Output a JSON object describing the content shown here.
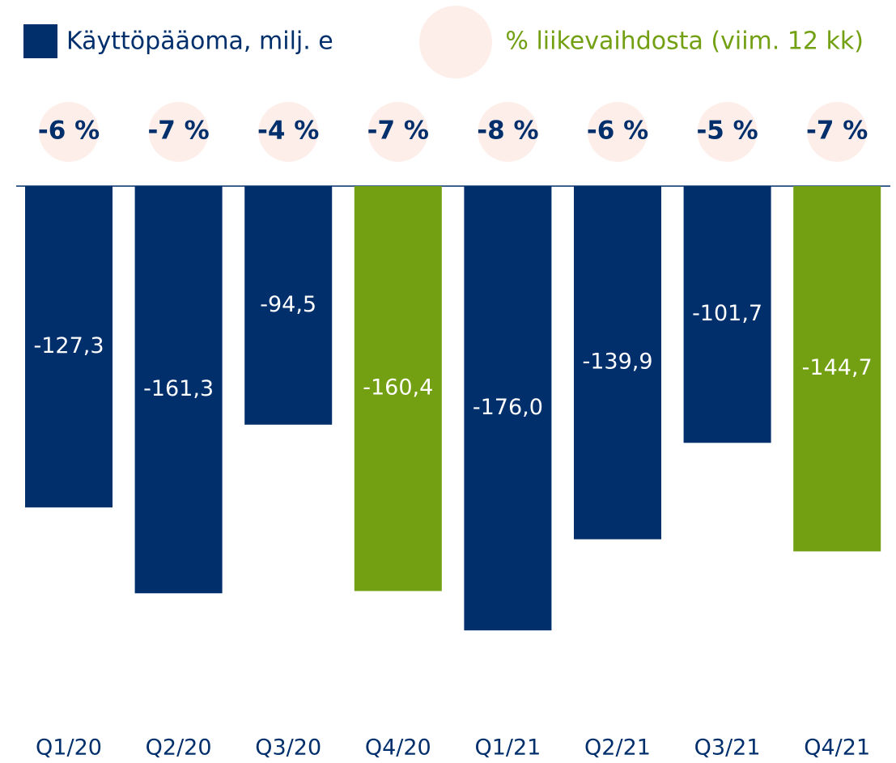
{
  "chart_data": {
    "type": "bar",
    "categories": [
      "Q1/20",
      "Q2/20",
      "Q3/20",
      "Q4/20",
      "Q1/21",
      "Q2/21",
      "Q3/21",
      "Q4/21"
    ],
    "series": [
      {
        "name": "Käyttöpääoma, milj. e",
        "color": "#002f6c",
        "colors": [
          "#002f6c",
          "#002f6c",
          "#002f6c",
          "#72a012",
          "#002f6c",
          "#002f6c",
          "#002f6c",
          "#72a012"
        ],
        "values": [
          -127.3,
          -161.3,
          -94.5,
          -160.4,
          -176.0,
          -139.9,
          -101.7,
          -144.7
        ],
        "value_labels": [
          "-127,3",
          "-161,3",
          "-94,5",
          "-160,4",
          "-176,0",
          "-139,9",
          "-101,7",
          "-144,7"
        ]
      },
      {
        "name": "% liikevaihdosta (viim. 12 kk)",
        "color": "#72a012",
        "values": [
          -6,
          -7,
          -4,
          -7,
          -8,
          -6,
          -5,
          -7
        ],
        "value_labels": [
          "-6 %",
          "-7 %",
          "-4 %",
          "-7 %",
          "-8 %",
          "-6 %",
          "-5 %",
          "-7 %"
        ]
      }
    ]
  }
}
